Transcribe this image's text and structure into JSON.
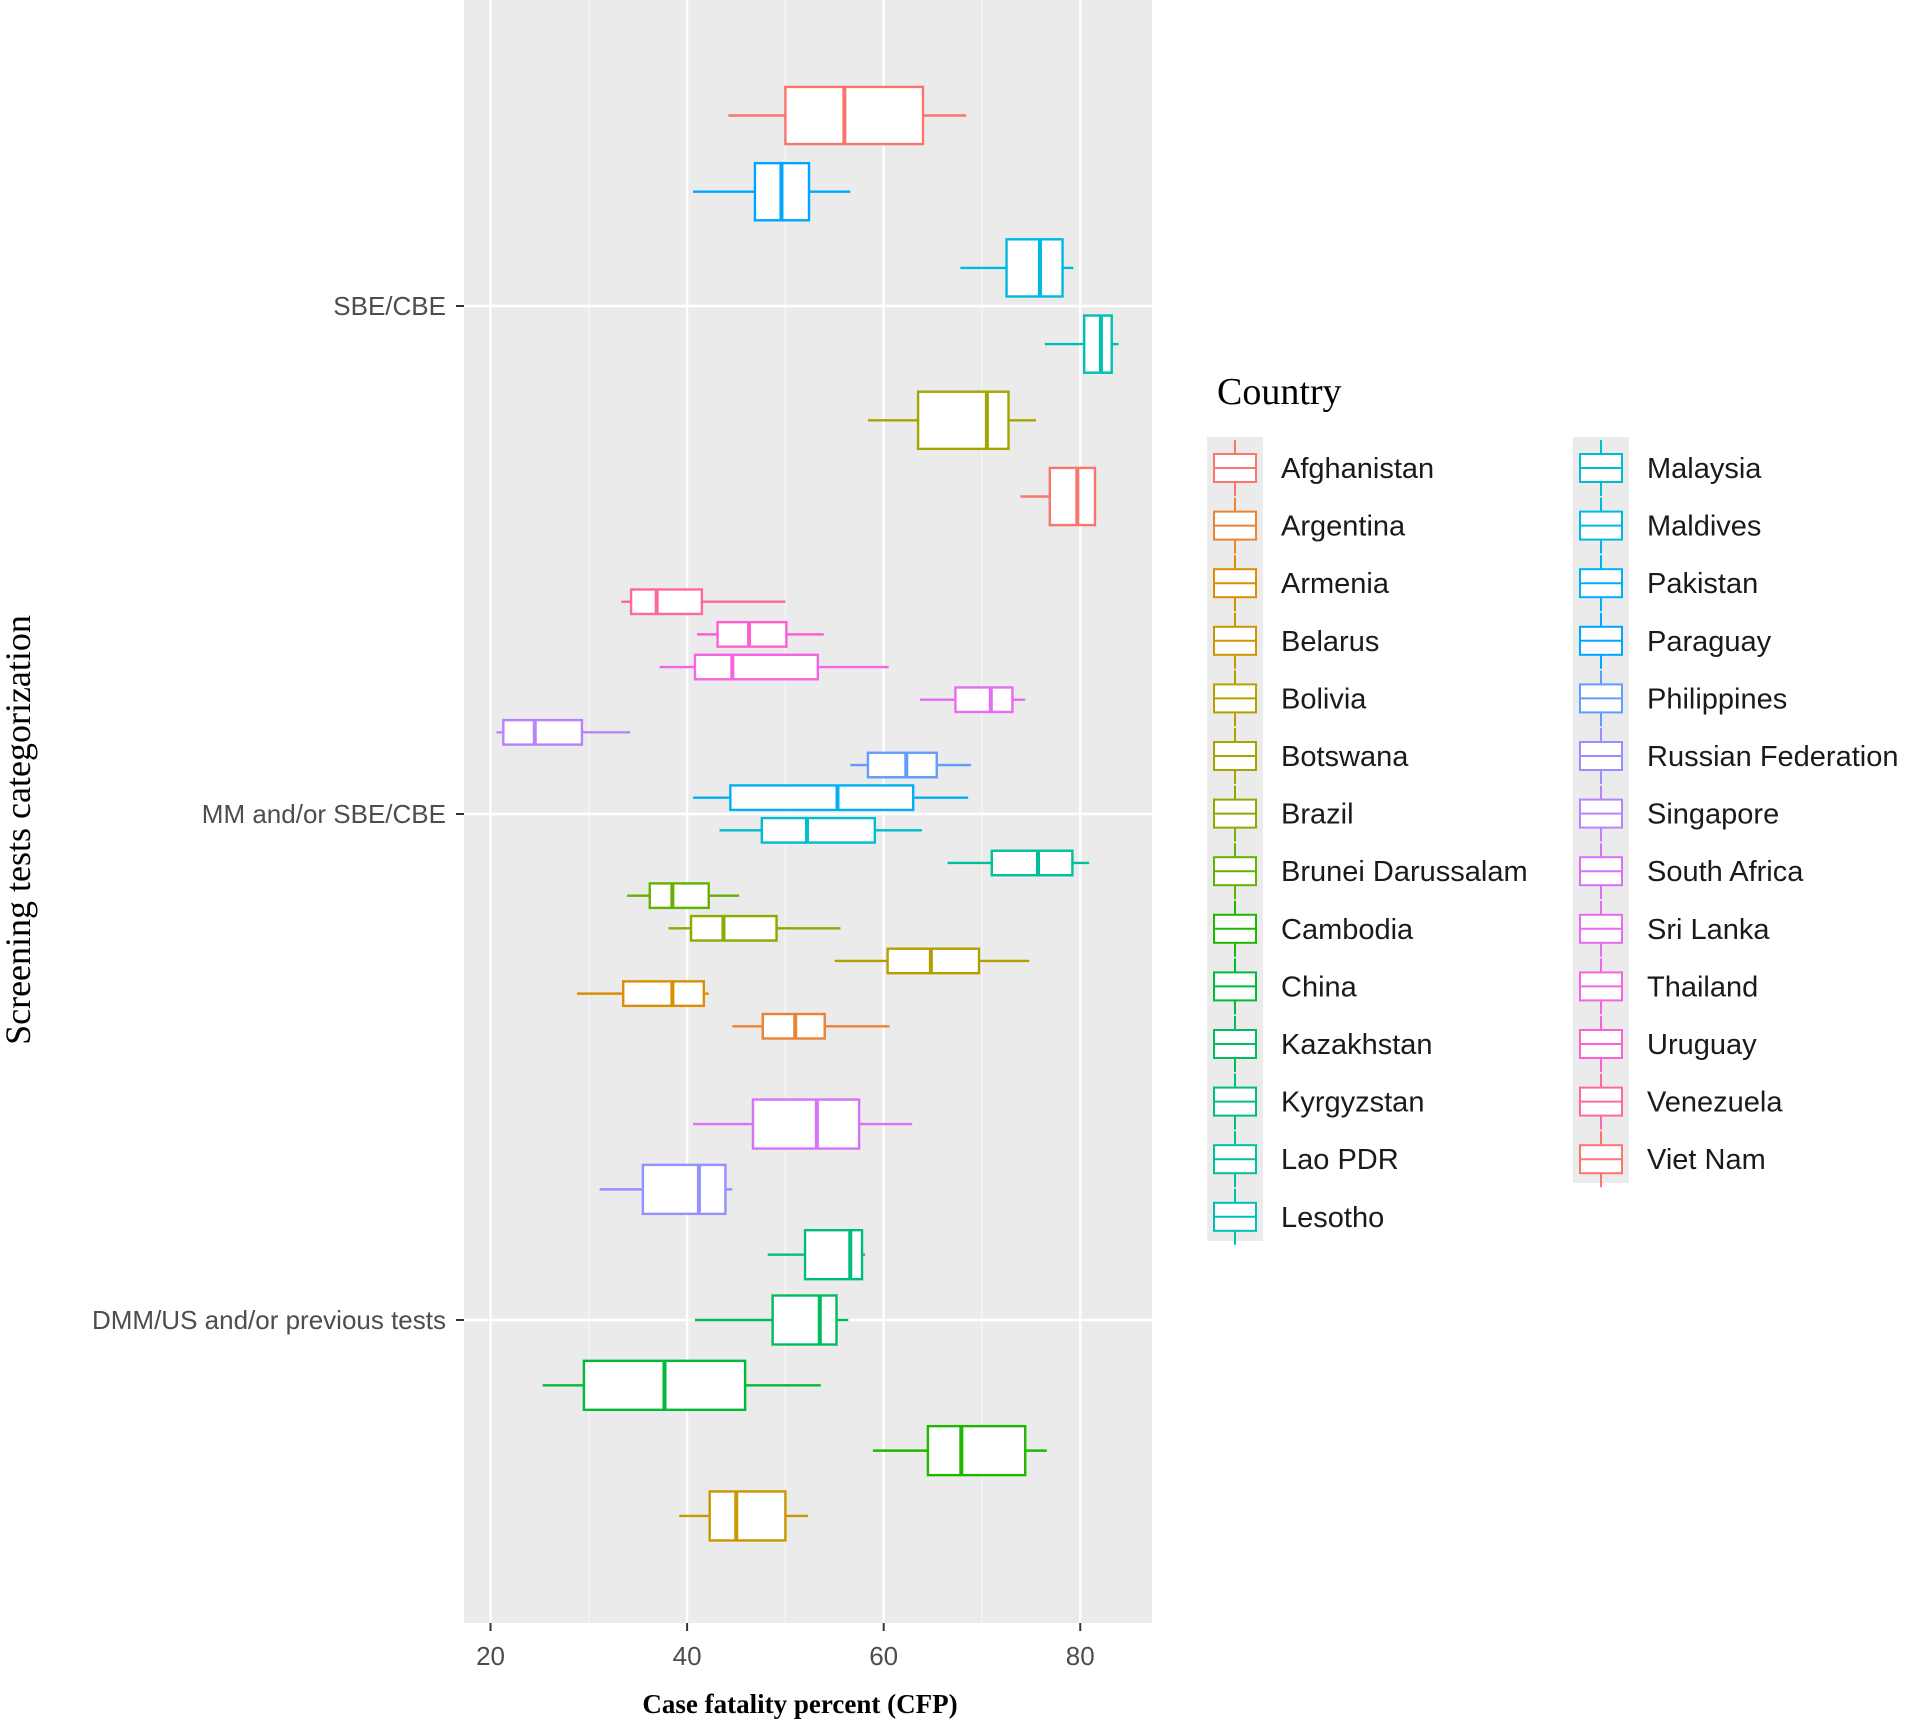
{
  "chart_data": {
    "type": "boxplot",
    "orientation": "horizontal",
    "xlabel": "Case fatality percent (CFP)",
    "ylabel": "Screening tests categorization",
    "xlim": [
      17.3,
      87.3
    ],
    "x_ticks": [
      20,
      40,
      60,
      80
    ],
    "categories": [
      "SBE/CBE",
      "MM and/or SBE/CBE",
      "DMM/US and/or previous tests"
    ],
    "legend_title": "Country",
    "legend": [
      {
        "name": "Afghanistan",
        "color": "#F8766D"
      },
      {
        "name": "Argentina",
        "color": "#EB8335"
      },
      {
        "name": "Armenia",
        "color": "#DB8E00"
      },
      {
        "name": "Belarus",
        "color": "#C99800"
      },
      {
        "name": "Bolivia",
        "color": "#B3A000"
      },
      {
        "name": "Botswana",
        "color": "#A3A500"
      },
      {
        "name": "Brazil",
        "color": "#88AC00"
      },
      {
        "name": "Brunei Darussalam",
        "color": "#64B200"
      },
      {
        "name": "Cambodia",
        "color": "#1FB700"
      },
      {
        "name": "China",
        "color": "#00BA38"
      },
      {
        "name": "Kazakhstan",
        "color": "#00BD5C"
      },
      {
        "name": "Kyrgyzstan",
        "color": "#00BF7D"
      },
      {
        "name": "Lao PDR",
        "color": "#00C09B"
      },
      {
        "name": "Lesotho",
        "color": "#00BFB4"
      },
      {
        "name": "Malaysia",
        "color": "#00BDD0"
      },
      {
        "name": "Maldives",
        "color": "#00B9E3"
      },
      {
        "name": "Pakistan",
        "color": "#00B0F6"
      },
      {
        "name": "Paraguay",
        "color": "#00A5FF"
      },
      {
        "name": "Philippines",
        "color": "#619CFF"
      },
      {
        "name": "Russian Federation",
        "color": "#9590FF"
      },
      {
        "name": "Singapore",
        "color": "#B983FF"
      },
      {
        "name": "South Africa",
        "color": "#D772F8"
      },
      {
        "name": "Sri Lanka",
        "color": "#E76BF3"
      },
      {
        "name": "Thailand",
        "color": "#F564E3"
      },
      {
        "name": "Uruguay",
        "color": "#FD61D1"
      },
      {
        "name": "Venezuela",
        "color": "#FF67A4"
      },
      {
        "name": "Viet Nam",
        "color": "#F8766D"
      }
    ],
    "boxes": [
      {
        "category": "SBE/CBE",
        "country": "Afghanistan",
        "color": "#F8766D",
        "min": 44.2,
        "q1": 50.0,
        "median": 56.0,
        "q3": 64.0,
        "max": 68.4
      },
      {
        "category": "SBE/CBE",
        "country": "Paraguay",
        "color": "#00A5FF",
        "min": 40.6,
        "q1": 46.9,
        "median": 49.6,
        "q3": 52.4,
        "max": 56.6
      },
      {
        "category": "SBE/CBE",
        "country": "Maldives",
        "color": "#00B9E3",
        "min": 67.8,
        "q1": 72.5,
        "median": 75.9,
        "q3": 78.2,
        "max": 79.3
      },
      {
        "category": "SBE/CBE",
        "country": "Lesotho",
        "color": "#00BFB4",
        "min": 76.4,
        "q1": 80.4,
        "median": 82.1,
        "q3": 83.2,
        "max": 83.9
      },
      {
        "category": "SBE/CBE",
        "country": "Botswana",
        "color": "#A3A500",
        "min": 58.4,
        "q1": 63.5,
        "median": 70.5,
        "q3": 72.7,
        "max": 75.5
      },
      {
        "category": "SBE/CBE",
        "country": "Viet Nam",
        "color": "#F8766D",
        "min": 73.9,
        "q1": 76.9,
        "median": 79.7,
        "q3": 81.5,
        "max": 81.5
      },
      {
        "category": "MM and/or SBE/CBE",
        "country": "Venezuela",
        "color": "#FF67A4",
        "min": 33.3,
        "q1": 34.3,
        "median": 36.9,
        "q3": 41.5,
        "max": 50.0
      },
      {
        "category": "MM and/or SBE/CBE",
        "country": "Uruguay",
        "color": "#FD61D1",
        "min": 41.0,
        "q1": 43.1,
        "median": 46.3,
        "q3": 50.1,
        "max": 53.9
      },
      {
        "category": "MM and/or SBE/CBE",
        "country": "Thailand",
        "color": "#F564E3",
        "min": 37.2,
        "q1": 40.8,
        "median": 44.6,
        "q3": 53.3,
        "max": 60.5
      },
      {
        "category": "MM and/or SBE/CBE",
        "country": "Sri Lanka",
        "color": "#E76BF3",
        "min": 63.7,
        "q1": 67.3,
        "median": 70.9,
        "q3": 73.1,
        "max": 74.4
      },
      {
        "category": "MM and/or SBE/CBE",
        "country": "Singapore",
        "color": "#B983FF",
        "min": 20.6,
        "q1": 21.3,
        "median": 24.5,
        "q3": 29.3,
        "max": 34.2
      },
      {
        "category": "MM and/or SBE/CBE",
        "country": "Philippines",
        "color": "#619CFF",
        "min": 56.6,
        "q1": 58.4,
        "median": 62.3,
        "q3": 65.4,
        "max": 68.9
      },
      {
        "category": "MM and/or SBE/CBE",
        "country": "Pakistan",
        "color": "#00B0F6",
        "min": 40.6,
        "q1": 44.4,
        "median": 55.3,
        "q3": 63.0,
        "max": 68.6
      },
      {
        "category": "MM and/or SBE/CBE",
        "country": "Malaysia",
        "color": "#00BDD0",
        "min": 43.3,
        "q1": 47.6,
        "median": 52.2,
        "q3": 59.1,
        "max": 63.9
      },
      {
        "category": "MM and/or SBE/CBE",
        "country": "Lao PDR",
        "color": "#00C09B",
        "min": 66.5,
        "q1": 71.0,
        "median": 75.7,
        "q3": 79.2,
        "max": 80.9
      },
      {
        "category": "MM and/or SBE/CBE",
        "country": "Brunei Darussalam",
        "color": "#64B200",
        "min": 33.9,
        "q1": 36.2,
        "median": 38.5,
        "q3": 42.2,
        "max": 45.3
      },
      {
        "category": "MM and/or SBE/CBE",
        "country": "Brazil",
        "color": "#88AC00",
        "min": 38.1,
        "q1": 40.4,
        "median": 43.7,
        "q3": 49.1,
        "max": 55.6
      },
      {
        "category": "MM and/or SBE/CBE",
        "country": "Bolivia",
        "color": "#B3A000",
        "min": 55.0,
        "q1": 60.4,
        "median": 64.8,
        "q3": 69.7,
        "max": 74.8
      },
      {
        "category": "MM and/or SBE/CBE",
        "country": "Armenia",
        "color": "#DB8E00",
        "min": 28.8,
        "q1": 33.5,
        "median": 38.5,
        "q3": 41.7,
        "max": 42.2
      },
      {
        "category": "MM and/or SBE/CBE",
        "country": "Argentina",
        "color": "#EB8335",
        "min": 44.6,
        "q1": 47.7,
        "median": 51.0,
        "q3": 54.0,
        "max": 60.6
      },
      {
        "category": "DMM/US and/or previous tests",
        "country": "South Africa",
        "color": "#D772F8",
        "min": 40.6,
        "q1": 46.7,
        "median": 53.2,
        "q3": 57.5,
        "max": 62.9
      },
      {
        "category": "DMM/US and/or previous tests",
        "country": "Russian Federation",
        "color": "#9590FF",
        "min": 31.1,
        "q1": 35.5,
        "median": 41.2,
        "q3": 43.9,
        "max": 44.6
      },
      {
        "category": "DMM/US and/or previous tests",
        "country": "Kyrgyzstan",
        "color": "#00BF7D",
        "min": 48.2,
        "q1": 52.0,
        "median": 56.6,
        "q3": 57.8,
        "max": 58.1
      },
      {
        "category": "DMM/US and/or previous tests",
        "country": "Kazakhstan",
        "color": "#00BD5C",
        "min": 40.8,
        "q1": 48.7,
        "median": 53.5,
        "q3": 55.2,
        "max": 56.4
      },
      {
        "category": "DMM/US and/or previous tests",
        "country": "China",
        "color": "#00BA38",
        "min": 25.3,
        "q1": 29.5,
        "median": 37.7,
        "q3": 45.9,
        "max": 53.6
      },
      {
        "category": "DMM/US and/or previous tests",
        "country": "Cambodia",
        "color": "#1FB700",
        "min": 58.9,
        "q1": 64.5,
        "median": 67.9,
        "q3": 74.4,
        "max": 76.6
      },
      {
        "category": "DMM/US and/or previous tests",
        "country": "Belarus",
        "color": "#C99800",
        "min": 39.2,
        "q1": 42.3,
        "median": 45.0,
        "q3": 50.0,
        "max": 52.3
      }
    ]
  }
}
